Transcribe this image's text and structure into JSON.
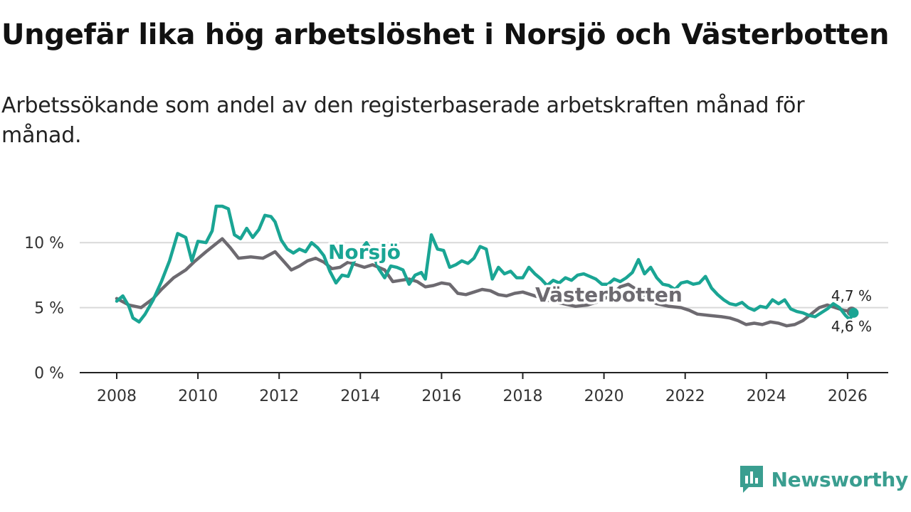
{
  "title": "Ungefär lika hög arbetslöshet i Norsjö och Västerbotten",
  "subtitle": "Arbetssökande som andel av den registerbaserade arbetskraften månad för månad.",
  "brand": {
    "name": "Newsworthy",
    "icon": "newsworthy-logo-icon"
  },
  "colors": {
    "norsjo": "#1aa594",
    "vasterbotten": "#6d6a70",
    "grid": "#d9d9d9",
    "axis": "#222222",
    "brand": "#3a9e90"
  },
  "chart_data": {
    "type": "line",
    "title": "Ungefär lika hög arbetslöshet i Norsjö och Västerbotten",
    "xlabel": "",
    "ylabel": "",
    "xlim": [
      2007.5,
      2026.9
    ],
    "ylim": [
      0,
      12.5
    ],
    "x_ticks": [
      2008,
      2010,
      2012,
      2014,
      2016,
      2018,
      2020,
      2022,
      2024,
      2026
    ],
    "y_ticks": [
      0,
      5,
      10
    ],
    "y_tick_labels": [
      "0 %",
      "5 %",
      "10 %"
    ],
    "series": [
      {
        "name": "Västerbotten",
        "label": "Västerbotten",
        "end_label": "4,7 %",
        "points": [
          [
            2008.0,
            5.7
          ],
          [
            2008.3,
            5.2
          ],
          [
            2008.6,
            5.0
          ],
          [
            2008.9,
            5.7
          ],
          [
            2009.1,
            6.4
          ],
          [
            2009.4,
            7.3
          ],
          [
            2009.7,
            7.9
          ],
          [
            2009.9,
            8.5
          ],
          [
            2010.2,
            9.3
          ],
          [
            2010.4,
            9.8
          ],
          [
            2010.6,
            10.3
          ],
          [
            2010.8,
            9.6
          ],
          [
            2011.0,
            8.8
          ],
          [
            2011.3,
            8.9
          ],
          [
            2011.6,
            8.8
          ],
          [
            2011.9,
            9.3
          ],
          [
            2012.1,
            8.6
          ],
          [
            2012.3,
            7.9
          ],
          [
            2012.5,
            8.2
          ],
          [
            2012.7,
            8.6
          ],
          [
            2012.9,
            8.8
          ],
          [
            2013.1,
            8.5
          ],
          [
            2013.3,
            8.0
          ],
          [
            2013.5,
            8.1
          ],
          [
            2013.7,
            8.5
          ],
          [
            2013.9,
            8.3
          ],
          [
            2014.1,
            8.1
          ],
          [
            2014.3,
            8.3
          ],
          [
            2014.6,
            7.9
          ],
          [
            2014.8,
            7.0
          ],
          [
            2015.0,
            7.1
          ],
          [
            2015.2,
            7.2
          ],
          [
            2015.4,
            7.0
          ],
          [
            2015.6,
            6.6
          ],
          [
            2015.8,
            6.7
          ],
          [
            2016.0,
            6.9
          ],
          [
            2016.2,
            6.8
          ],
          [
            2016.4,
            6.1
          ],
          [
            2016.6,
            6.0
          ],
          [
            2016.8,
            6.2
          ],
          [
            2017.0,
            6.4
          ],
          [
            2017.2,
            6.3
          ],
          [
            2017.4,
            6.0
          ],
          [
            2017.6,
            5.9
          ],
          [
            2017.8,
            6.1
          ],
          [
            2018.0,
            6.2
          ],
          [
            2018.2,
            6.0
          ],
          [
            2018.5,
            5.7
          ],
          [
            2018.7,
            5.5
          ],
          [
            2019.0,
            5.3
          ],
          [
            2019.3,
            5.1
          ],
          [
            2019.6,
            5.2
          ],
          [
            2019.9,
            5.5
          ],
          [
            2020.2,
            6.0
          ],
          [
            2020.4,
            6.6
          ],
          [
            2020.6,
            6.8
          ],
          [
            2020.9,
            6.2
          ],
          [
            2021.1,
            5.6
          ],
          [
            2021.3,
            5.3
          ],
          [
            2021.6,
            5.1
          ],
          [
            2021.9,
            5.0
          ],
          [
            2022.1,
            4.8
          ],
          [
            2022.3,
            4.5
          ],
          [
            2022.6,
            4.4
          ],
          [
            2022.9,
            4.3
          ],
          [
            2023.1,
            4.2
          ],
          [
            2023.3,
            4.0
          ],
          [
            2023.5,
            3.7
          ],
          [
            2023.7,
            3.8
          ],
          [
            2023.9,
            3.7
          ],
          [
            2024.1,
            3.9
          ],
          [
            2024.3,
            3.8
          ],
          [
            2024.5,
            3.6
          ],
          [
            2024.7,
            3.7
          ],
          [
            2024.9,
            4.0
          ],
          [
            2025.1,
            4.5
          ],
          [
            2025.3,
            5.0
          ],
          [
            2025.5,
            5.2
          ],
          [
            2025.7,
            5.0
          ],
          [
            2025.9,
            4.8
          ],
          [
            2026.1,
            4.7
          ]
        ]
      },
      {
        "name": "Norsjö",
        "label": "Norsjö",
        "end_label": "4,6 %",
        "points": [
          [
            2008.0,
            5.5
          ],
          [
            2008.15,
            5.9
          ],
          [
            2008.3,
            5.1
          ],
          [
            2008.4,
            4.2
          ],
          [
            2008.55,
            3.9
          ],
          [
            2008.7,
            4.5
          ],
          [
            2008.9,
            5.6
          ],
          [
            2009.1,
            7.0
          ],
          [
            2009.3,
            8.6
          ],
          [
            2009.5,
            10.7
          ],
          [
            2009.7,
            10.4
          ],
          [
            2009.85,
            8.6
          ],
          [
            2010.0,
            10.1
          ],
          [
            2010.2,
            10.0
          ],
          [
            2010.35,
            10.9
          ],
          [
            2010.45,
            12.8
          ],
          [
            2010.6,
            12.8
          ],
          [
            2010.75,
            12.6
          ],
          [
            2010.9,
            10.6
          ],
          [
            2011.05,
            10.3
          ],
          [
            2011.2,
            11.1
          ],
          [
            2011.35,
            10.4
          ],
          [
            2011.5,
            11.0
          ],
          [
            2011.65,
            12.1
          ],
          [
            2011.8,
            12.0
          ],
          [
            2011.9,
            11.6
          ],
          [
            2012.05,
            10.2
          ],
          [
            2012.2,
            9.5
          ],
          [
            2012.35,
            9.2
          ],
          [
            2012.5,
            9.5
          ],
          [
            2012.65,
            9.3
          ],
          [
            2012.8,
            10.0
          ],
          [
            2012.95,
            9.6
          ],
          [
            2013.1,
            9.0
          ],
          [
            2013.25,
            7.8
          ],
          [
            2013.4,
            6.9
          ],
          [
            2013.55,
            7.5
          ],
          [
            2013.7,
            7.4
          ],
          [
            2013.85,
            8.6
          ],
          [
            2014.0,
            9.4
          ],
          [
            2014.15,
            10.0
          ],
          [
            2014.3,
            9.2
          ],
          [
            2014.45,
            8.0
          ],
          [
            2014.6,
            7.3
          ],
          [
            2014.75,
            8.2
          ],
          [
            2014.9,
            8.1
          ],
          [
            2015.05,
            7.9
          ],
          [
            2015.2,
            6.8
          ],
          [
            2015.35,
            7.5
          ],
          [
            2015.5,
            7.7
          ],
          [
            2015.6,
            7.2
          ],
          [
            2015.75,
            10.6
          ],
          [
            2015.9,
            9.5
          ],
          [
            2016.05,
            9.4
          ],
          [
            2016.2,
            8.1
          ],
          [
            2016.35,
            8.3
          ],
          [
            2016.5,
            8.6
          ],
          [
            2016.65,
            8.4
          ],
          [
            2016.8,
            8.8
          ],
          [
            2016.95,
            9.7
          ],
          [
            2017.1,
            9.5
          ],
          [
            2017.25,
            7.2
          ],
          [
            2017.4,
            8.1
          ],
          [
            2017.55,
            7.6
          ],
          [
            2017.7,
            7.8
          ],
          [
            2017.85,
            7.3
          ],
          [
            2018.0,
            7.3
          ],
          [
            2018.15,
            8.1
          ],
          [
            2018.3,
            7.6
          ],
          [
            2018.45,
            7.2
          ],
          [
            2018.6,
            6.7
          ],
          [
            2018.75,
            7.1
          ],
          [
            2018.9,
            6.9
          ],
          [
            2019.05,
            7.3
          ],
          [
            2019.2,
            7.1
          ],
          [
            2019.35,
            7.5
          ],
          [
            2019.5,
            7.6
          ],
          [
            2019.65,
            7.4
          ],
          [
            2019.8,
            7.2
          ],
          [
            2019.95,
            6.8
          ],
          [
            2020.1,
            6.8
          ],
          [
            2020.25,
            7.2
          ],
          [
            2020.4,
            7.0
          ],
          [
            2020.55,
            7.3
          ],
          [
            2020.7,
            7.7
          ],
          [
            2020.85,
            8.7
          ],
          [
            2021.0,
            7.6
          ],
          [
            2021.15,
            8.1
          ],
          [
            2021.3,
            7.3
          ],
          [
            2021.45,
            6.8
          ],
          [
            2021.6,
            6.7
          ],
          [
            2021.75,
            6.4
          ],
          [
            2021.9,
            6.9
          ],
          [
            2022.05,
            7.0
          ],
          [
            2022.2,
            6.8
          ],
          [
            2022.35,
            6.9
          ],
          [
            2022.5,
            7.4
          ],
          [
            2022.65,
            6.5
          ],
          [
            2022.8,
            6.0
          ],
          [
            2022.95,
            5.6
          ],
          [
            2023.1,
            5.3
          ],
          [
            2023.25,
            5.2
          ],
          [
            2023.4,
            5.4
          ],
          [
            2023.55,
            5.0
          ],
          [
            2023.7,
            4.8
          ],
          [
            2023.85,
            5.1
          ],
          [
            2024.0,
            5.0
          ],
          [
            2024.15,
            5.6
          ],
          [
            2024.3,
            5.3
          ],
          [
            2024.45,
            5.6
          ],
          [
            2024.6,
            4.9
          ],
          [
            2024.75,
            4.7
          ],
          [
            2024.9,
            4.6
          ],
          [
            2025.05,
            4.4
          ],
          [
            2025.2,
            4.3
          ],
          [
            2025.35,
            4.6
          ],
          [
            2025.5,
            4.9
          ],
          [
            2025.65,
            5.3
          ],
          [
            2025.8,
            5.0
          ],
          [
            2025.95,
            4.4
          ],
          [
            2026.05,
            4.1
          ],
          [
            2026.15,
            4.6
          ]
        ]
      }
    ]
  }
}
